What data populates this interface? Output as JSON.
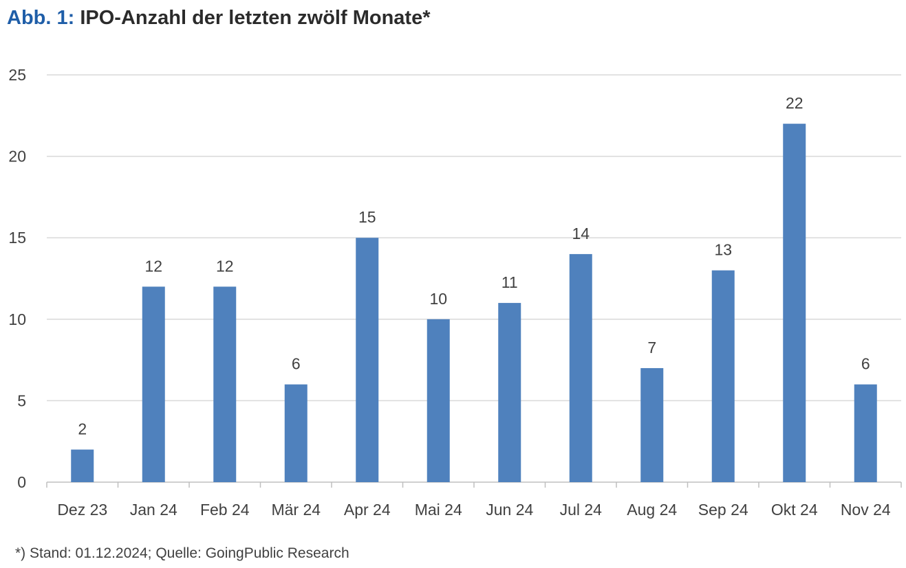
{
  "title": {
    "prefix": "Abb. 1:",
    "text": "IPO-Anzahl der letzten zwölf Monate*"
  },
  "footnote": "*) Stand: 01.12.2024; Quelle: GoingPublic Research",
  "colors": {
    "bar": "#4f81bd",
    "grid": "#d9d9d9",
    "axis": "#bfbfbf",
    "title_prefix": "#1f5ea8",
    "text": "#404040"
  },
  "chart_data": {
    "type": "bar",
    "categories": [
      "Dez 23",
      "Jan 24",
      "Feb 24",
      "Mär 24",
      "Apr 24",
      "Mai 24",
      "Jun 24",
      "Jul 24",
      "Aug 24",
      "Sep 24",
      "Okt 24",
      "Nov 24"
    ],
    "values": [
      2,
      12,
      12,
      6,
      15,
      10,
      11,
      14,
      7,
      13,
      22,
      6
    ],
    "ylim": [
      0,
      25
    ],
    "yticks": [
      0,
      5,
      10,
      15,
      20,
      25
    ],
    "grid": true,
    "data_labels": true
  }
}
